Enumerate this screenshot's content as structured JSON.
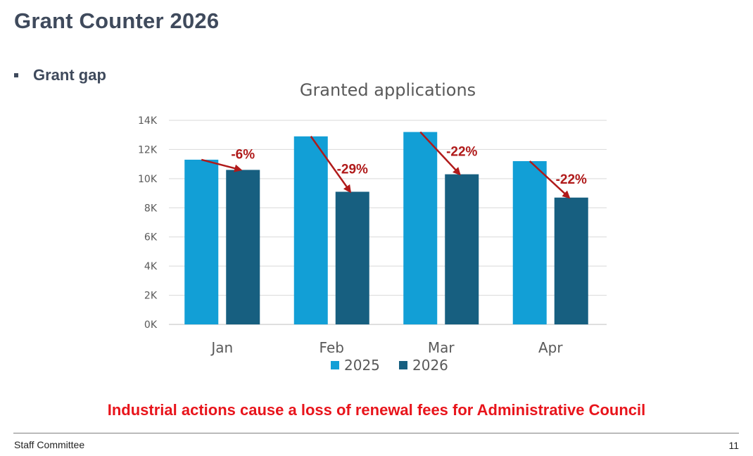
{
  "slide": {
    "title": "Grant Counter 2026",
    "bullet": "Grant gap",
    "callout": "Industrial actions cause a loss of renewal fees for Administrative Council",
    "footer_left": "Staff Committee",
    "page_number": "11"
  },
  "colors": {
    "title": "#3f4a5c",
    "series_2025": "#129fd6",
    "series_2026": "#175f80",
    "arrow": "#b01a1a",
    "callout": "#e8141b"
  },
  "chart_data": {
    "type": "bar",
    "title": "Granted applications",
    "xlabel": "",
    "ylabel": "",
    "categories": [
      "Jan",
      "Feb",
      "Mar",
      "Apr"
    ],
    "series": [
      {
        "name": "2025",
        "values": [
          11300,
          12900,
          13200,
          11200
        ]
      },
      {
        "name": "2026",
        "values": [
          10600,
          9100,
          10300,
          8700
        ]
      }
    ],
    "ylim": [
      0,
      14000
    ],
    "yticks": [
      0,
      2000,
      4000,
      6000,
      8000,
      10000,
      12000,
      14000
    ],
    "ytick_labels": [
      "0K",
      "2K",
      "4K",
      "6K",
      "8K",
      "10K",
      "12K",
      "14K"
    ],
    "annotations": [
      "-6%",
      "-29%",
      "-22%",
      "-22%"
    ],
    "grid": true,
    "legend": "bottom"
  }
}
